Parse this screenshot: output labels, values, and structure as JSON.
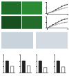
{
  "chart_data": [
    {
      "type": "line",
      "x": [
        0,
        1,
        2,
        3,
        4,
        5,
        6,
        7
      ],
      "xlim": [
        0,
        7
      ],
      "xticks": [
        0,
        7
      ],
      "ylim": [
        0,
        10
      ],
      "yticks": [
        0,
        5,
        10
      ],
      "tick_labels": false,
      "series": [
        {
          "color": "#222222",
          "values": [
            0,
            1,
            2,
            3.5,
            5,
            6.5,
            7.5,
            8
          ]
        },
        {
          "color": "#999999",
          "values": [
            0,
            0.8,
            1.6,
            2.6,
            3.6,
            4.4,
            5,
            5.5
          ]
        }
      ]
    },
    {
      "type": "line",
      "x": [
        0,
        1,
        2,
        3,
        4,
        5,
        6,
        7
      ],
      "xlim": [
        0,
        7
      ],
      "xticks": [
        0,
        7
      ],
      "ylim": [
        0,
        10
      ],
      "yticks": [
        0,
        5,
        10
      ],
      "tick_labels": false,
      "series": [
        {
          "color": "#222222",
          "values": [
            0,
            1.5,
            3,
            4.5,
            6,
            7,
            7.8,
            8.3
          ]
        },
        {
          "color": "#999999",
          "values": [
            0,
            1,
            2,
            3,
            3.8,
            4.5,
            5,
            5.3
          ]
        }
      ]
    },
    {
      "type": "bar",
      "categories": [
        null,
        null
      ],
      "values": [
        1.0,
        0.55
      ],
      "colors": [
        "#222222",
        "#ffffff"
      ],
      "ylim": [
        0,
        1.5
      ],
      "yticks": [
        0,
        0.5,
        1,
        1.5
      ],
      "tick_labels": false
    },
    {
      "type": "bar",
      "categories": [
        null,
        null
      ],
      "values": [
        1.0,
        0.6
      ],
      "colors": [
        "#222222",
        "#ffffff"
      ],
      "ylim": [
        0,
        1.5
      ],
      "yticks": [
        0,
        0.5,
        1,
        1.5
      ],
      "tick_labels": false
    },
    {
      "type": "bar",
      "categories": [
        null,
        null
      ],
      "values": [
        1.0,
        0.45
      ],
      "colors": [
        "#222222",
        "#ffffff"
      ],
      "ylim": [
        0,
        1.5
      ],
      "yticks": [
        0,
        0.5,
        1,
        1.5
      ],
      "tick_labels": false
    },
    {
      "type": "bar",
      "categories": [
        null,
        null
      ],
      "values": [
        1.0,
        0.5
      ],
      "colors": [
        "#222222",
        "#ffffff"
      ],
      "ylim": [
        0,
        1.5
      ],
      "yticks": [
        0,
        0.5,
        1,
        1.5
      ],
      "tick_labels": false
    }
  ]
}
